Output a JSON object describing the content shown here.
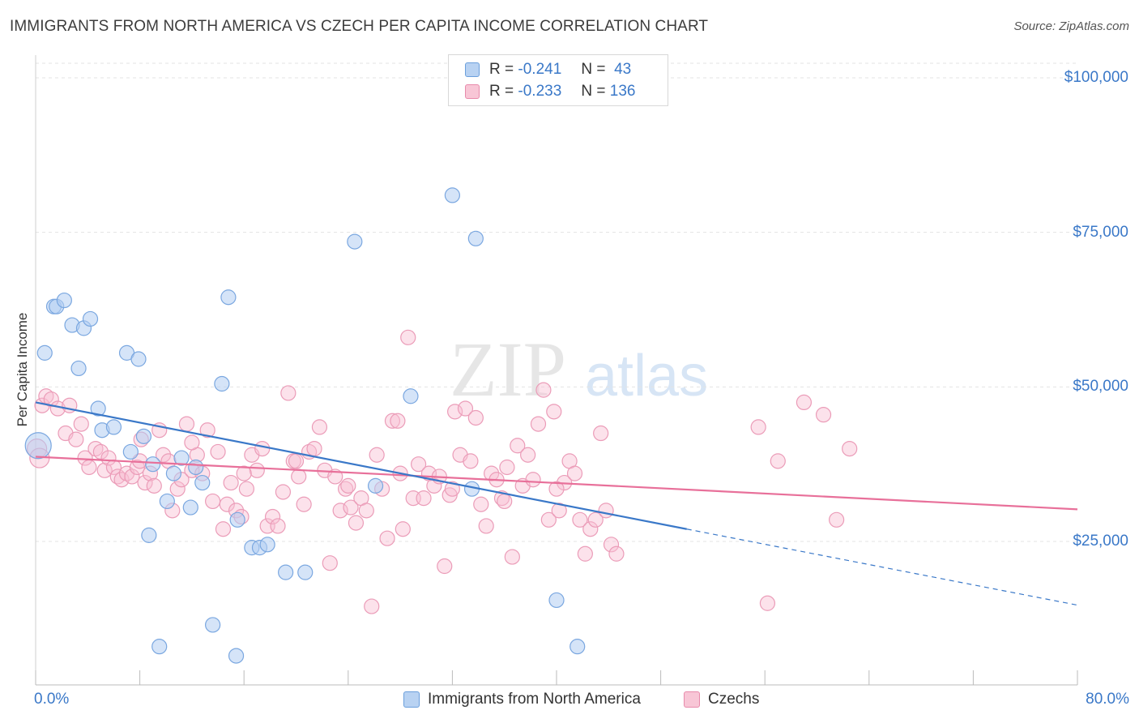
{
  "title": "IMMIGRANTS FROM NORTH AMERICA VS CZECH PER CAPITA INCOME CORRELATION CHART",
  "source": "Source: ZipAtlas.com",
  "watermark": {
    "zip": "ZIP",
    "atlas": "atlas"
  },
  "legend": {
    "r_label": "R =",
    "n_label": "N =",
    "blue": {
      "r": "-0.241",
      "n": "43"
    },
    "pink": {
      "r": "-0.233",
      "n": "136"
    }
  },
  "colors": {
    "blue": "#3a78c8",
    "blue_fill": "#b8d2f2",
    "pink": "#e8709a",
    "pink_fill": "#f8c6d6"
  },
  "chart_data": {
    "type": "scatter",
    "ylabel": "Per Capita Income",
    "xlim": [
      0,
      80
    ],
    "ylim": [
      0,
      105000
    ],
    "y_ticks": [
      {
        "value": 100000,
        "label": "$100,000"
      },
      {
        "value": 75000,
        "label": "$75,000"
      },
      {
        "value": 50000,
        "label": "$50,000"
      },
      {
        "value": 25000,
        "label": "$25,000"
      }
    ],
    "x_tick_labels": [
      {
        "value": 0,
        "label": "0.0%"
      },
      {
        "value": 80,
        "label": "80.0%"
      }
    ],
    "series": [
      {
        "name": "Immigrants from North America",
        "color": "#3a78c8",
        "trend": {
          "x0": 0,
          "y0": 47500,
          "x1": 50,
          "y1": 27000,
          "x_dash_end": 80,
          "y_dash_end": 14700
        },
        "points": [
          [
            0.2,
            40500
          ],
          [
            0.7,
            55500
          ],
          [
            1.4,
            63000
          ],
          [
            1.6,
            63000
          ],
          [
            2.2,
            64000
          ],
          [
            2.8,
            60000
          ],
          [
            3.7,
            59500
          ],
          [
            4.2,
            61000
          ],
          [
            3.3,
            53000
          ],
          [
            4.8,
            46500
          ],
          [
            5.1,
            43000
          ],
          [
            6.0,
            43500
          ],
          [
            7.0,
            55500
          ],
          [
            7.9,
            54500
          ],
          [
            8.3,
            42000
          ],
          [
            7.3,
            39500
          ],
          [
            9.0,
            37500
          ],
          [
            10.1,
            31500
          ],
          [
            10.6,
            36000
          ],
          [
            11.2,
            38500
          ],
          [
            11.9,
            30500
          ],
          [
            12.3,
            37000
          ],
          [
            12.8,
            34500
          ],
          [
            14.3,
            50500
          ],
          [
            14.8,
            64500
          ],
          [
            15.5,
            28500
          ],
          [
            16.6,
            24000
          ],
          [
            17.2,
            24000
          ],
          [
            17.8,
            24500
          ],
          [
            20.7,
            20000
          ],
          [
            24.5,
            73500
          ],
          [
            26.1,
            34000
          ],
          [
            28.8,
            48500
          ],
          [
            32.0,
            81000
          ],
          [
            33.8,
            74000
          ],
          [
            33.5,
            33500
          ],
          [
            40.0,
            15500
          ],
          [
            41.6,
            8000
          ],
          [
            19.2,
            20000
          ],
          [
            9.5,
            8000
          ],
          [
            13.6,
            11500
          ],
          [
            15.4,
            6500
          ],
          [
            8.7,
            26000
          ]
        ]
      },
      {
        "name": "Czechs",
        "color": "#e8709a",
        "trend": {
          "x0": 0,
          "y0": 38700,
          "x1": 80,
          "y1": 30200
        },
        "points": [
          [
            0.1,
            40000
          ],
          [
            0.5,
            47000
          ],
          [
            0.8,
            48500
          ],
          [
            1.2,
            48000
          ],
          [
            1.7,
            46500
          ],
          [
            2.3,
            42500
          ],
          [
            2.6,
            47000
          ],
          [
            3.1,
            41500
          ],
          [
            3.5,
            44000
          ],
          [
            3.8,
            38500
          ],
          [
            4.1,
            37000
          ],
          [
            4.6,
            40000
          ],
          [
            5.0,
            39500
          ],
          [
            5.3,
            36500
          ],
          [
            5.6,
            38500
          ],
          [
            6.0,
            37000
          ],
          [
            6.3,
            35500
          ],
          [
            6.6,
            35000
          ],
          [
            7.0,
            36000
          ],
          [
            7.4,
            35500
          ],
          [
            7.8,
            37000
          ],
          [
            8.1,
            41500
          ],
          [
            8.4,
            34500
          ],
          [
            8.8,
            36000
          ],
          [
            9.1,
            34000
          ],
          [
            9.5,
            43000
          ],
          [
            9.8,
            39000
          ],
          [
            10.2,
            38000
          ],
          [
            10.5,
            30000
          ],
          [
            10.9,
            33500
          ],
          [
            11.2,
            35000
          ],
          [
            11.6,
            44000
          ],
          [
            12.0,
            36500
          ],
          [
            12.4,
            39000
          ],
          [
            12.8,
            36000
          ],
          [
            13.2,
            43000
          ],
          [
            13.6,
            31500
          ],
          [
            14.0,
            39500
          ],
          [
            14.4,
            27000
          ],
          [
            14.7,
            31000
          ],
          [
            15.0,
            34500
          ],
          [
            15.4,
            30000
          ],
          [
            15.8,
            29000
          ],
          [
            16.2,
            33500
          ],
          [
            16.6,
            39000
          ],
          [
            17.0,
            36500
          ],
          [
            17.4,
            40000
          ],
          [
            17.8,
            27500
          ],
          [
            18.2,
            29000
          ],
          [
            18.6,
            27500
          ],
          [
            19.0,
            33000
          ],
          [
            19.4,
            49000
          ],
          [
            19.8,
            38000
          ],
          [
            20.2,
            35500
          ],
          [
            20.6,
            31000
          ],
          [
            21.0,
            39500
          ],
          [
            21.4,
            40000
          ],
          [
            21.8,
            43500
          ],
          [
            22.2,
            36500
          ],
          [
            22.6,
            21500
          ],
          [
            23.0,
            35500
          ],
          [
            23.4,
            30000
          ],
          [
            23.8,
            33500
          ],
          [
            24.2,
            30500
          ],
          [
            24.6,
            28000
          ],
          [
            25.0,
            32000
          ],
          [
            25.4,
            30000
          ],
          [
            25.8,
            14500
          ],
          [
            26.2,
            39000
          ],
          [
            26.6,
            33500
          ],
          [
            27.0,
            25500
          ],
          [
            27.4,
            44500
          ],
          [
            27.8,
            44500
          ],
          [
            28.2,
            27000
          ],
          [
            28.6,
            58000
          ],
          [
            29.0,
            32000
          ],
          [
            29.4,
            37500
          ],
          [
            29.8,
            32000
          ],
          [
            30.2,
            36000
          ],
          [
            30.6,
            34000
          ],
          [
            31.0,
            35500
          ],
          [
            31.4,
            21000
          ],
          [
            31.8,
            32500
          ],
          [
            32.2,
            46000
          ],
          [
            32.6,
            39000
          ],
          [
            33.0,
            46500
          ],
          [
            33.4,
            38000
          ],
          [
            33.8,
            45000
          ],
          [
            34.2,
            31000
          ],
          [
            34.6,
            27500
          ],
          [
            35.0,
            36000
          ],
          [
            35.4,
            35000
          ],
          [
            35.8,
            32000
          ],
          [
            36.2,
            37000
          ],
          [
            36.6,
            22500
          ],
          [
            37.0,
            40500
          ],
          [
            37.4,
            34000
          ],
          [
            37.8,
            39000
          ],
          [
            38.2,
            35000
          ],
          [
            38.6,
            44000
          ],
          [
            39.0,
            49500
          ],
          [
            39.4,
            28500
          ],
          [
            39.8,
            46000
          ],
          [
            40.2,
            30000
          ],
          [
            40.6,
            34500
          ],
          [
            41.0,
            38000
          ],
          [
            41.4,
            36000
          ],
          [
            41.8,
            28500
          ],
          [
            42.2,
            23000
          ],
          [
            42.6,
            27000
          ],
          [
            43.0,
            28500
          ],
          [
            43.4,
            42500
          ],
          [
            43.8,
            30000
          ],
          [
            44.2,
            24500
          ],
          [
            44.6,
            23000
          ],
          [
            55.5,
            43500
          ],
          [
            56.2,
            15000
          ],
          [
            57.0,
            38000
          ],
          [
            59.0,
            47500
          ],
          [
            60.5,
            45500
          ],
          [
            61.5,
            28500
          ],
          [
            62.5,
            40000
          ],
          [
            8.0,
            38000
          ],
          [
            12.0,
            41000
          ],
          [
            16.0,
            36000
          ],
          [
            20.0,
            38000
          ],
          [
            24.0,
            34000
          ],
          [
            28.0,
            36000
          ],
          [
            32.0,
            33500
          ],
          [
            36.0,
            31500
          ],
          [
            40.0,
            33500
          ],
          [
            0.3,
            38500
          ]
        ]
      }
    ]
  },
  "bottom_legend": {
    "blue": "Immigrants from North America",
    "pink": "Czechs"
  }
}
